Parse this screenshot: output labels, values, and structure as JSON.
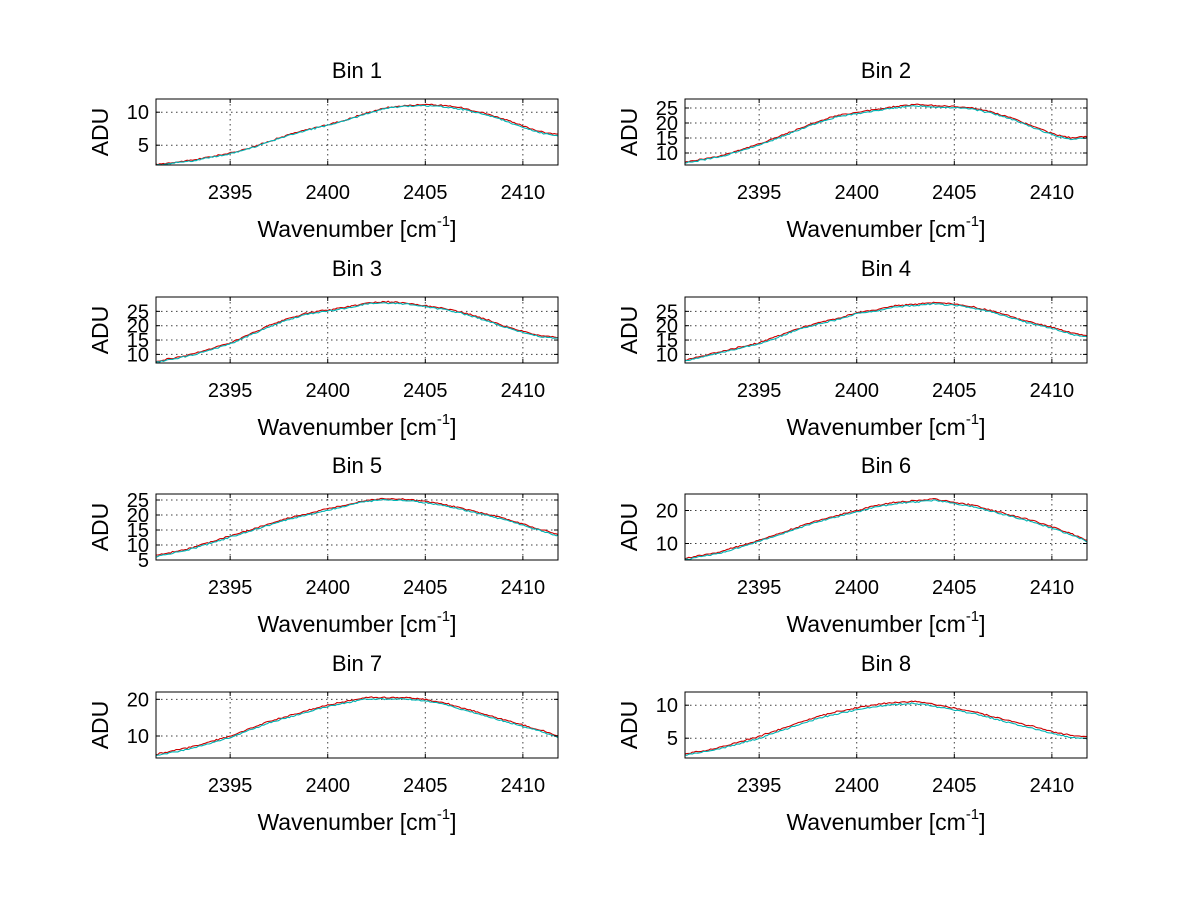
{
  "figure": {
    "panel_titles": [
      "Bin 1",
      "Bin 2",
      "Bin 3",
      "Bin 4",
      "Bin 5",
      "Bin 6",
      "Bin 7",
      "Bin 8"
    ],
    "xlabel_main": "Wavenumber [cm",
    "xlabel_sup": "-1",
    "xlabel_close": "]",
    "ylabel": "ADU"
  },
  "chart_data": [
    {
      "type": "line",
      "title": "Bin 1",
      "xlabel": "Wavenumber [cm-1]",
      "ylabel": "ADU",
      "xlim": [
        2391.2,
        2411.8
      ],
      "ylim": [
        2,
        12
      ],
      "xticks": [
        2395,
        2400,
        2405,
        2410
      ],
      "yticks": [
        5,
        10
      ],
      "grid": true,
      "x": [
        2391.2,
        2393,
        2395,
        2396,
        2397,
        2398,
        2399,
        2400,
        2401,
        2402,
        2403,
        2404,
        2405,
        2406,
        2407,
        2408,
        2409,
        2410,
        2411,
        2411.8
      ],
      "series": [
        {
          "color": "#cc0000",
          "values": [
            2.1,
            2.7,
            3.8,
            4.6,
            5.6,
            6.6,
            7.4,
            8.1,
            8.9,
            9.9,
            10.7,
            11.0,
            11.2,
            11.0,
            10.6,
            9.9,
            9.0,
            7.9,
            7.0,
            6.6
          ]
        },
        {
          "color": "#00b4b4",
          "values": [
            2.0,
            2.6,
            3.7,
            4.5,
            5.5,
            6.5,
            7.3,
            8.0,
            8.8,
            9.8,
            10.6,
            10.9,
            11.0,
            10.8,
            10.4,
            9.7,
            8.8,
            7.7,
            6.8,
            6.4
          ]
        }
      ]
    },
    {
      "type": "line",
      "title": "Bin 2",
      "xlabel": "Wavenumber [cm-1]",
      "ylabel": "ADU",
      "xlim": [
        2391.2,
        2411.8
      ],
      "ylim": [
        6,
        28
      ],
      "xticks": [
        2395,
        2400,
        2405,
        2410
      ],
      "yticks": [
        10,
        15,
        20,
        25
      ],
      "grid": true,
      "x": [
        2391.2,
        2393,
        2395,
        2396,
        2397,
        2398,
        2399,
        2400,
        2401,
        2402,
        2403,
        2404,
        2405,
        2406,
        2407,
        2408,
        2409,
        2410,
        2411,
        2411.8
      ],
      "series": [
        {
          "color": "#cc0000",
          "values": [
            7,
            9,
            13,
            15.5,
            18,
            20.5,
            22.5,
            23.5,
            24.5,
            25.5,
            26.2,
            25.8,
            25.5,
            25,
            23.5,
            21.5,
            19,
            16.5,
            15,
            15.5
          ]
        },
        {
          "color": "#00b4b4",
          "values": [
            6.7,
            8.7,
            12.6,
            15.1,
            17.6,
            20.1,
            22.1,
            23.1,
            24.1,
            25.1,
            25.8,
            25.4,
            25.1,
            24.6,
            23.1,
            21.1,
            18.6,
            16.1,
            14.6,
            15.1
          ]
        }
      ]
    },
    {
      "type": "line",
      "title": "Bin 3",
      "xlabel": "Wavenumber [cm-1]",
      "ylabel": "ADU",
      "xlim": [
        2391.2,
        2411.8
      ],
      "ylim": [
        7,
        30
      ],
      "xticks": [
        2395,
        2400,
        2405,
        2410
      ],
      "yticks": [
        10,
        15,
        20,
        25
      ],
      "grid": true,
      "x": [
        2391.2,
        2393,
        2395,
        2396,
        2397,
        2398,
        2399,
        2400,
        2401,
        2402,
        2403,
        2404,
        2405,
        2406,
        2407,
        2408,
        2409,
        2410,
        2411,
        2411.8
      ],
      "series": [
        {
          "color": "#cc0000",
          "values": [
            7.5,
            10,
            14,
            17,
            20,
            22.5,
            24.5,
            25.5,
            26.5,
            28,
            28.3,
            28,
            27,
            26,
            24.5,
            22.5,
            20,
            18,
            16.5,
            16
          ]
        },
        {
          "color": "#00b4b4",
          "values": [
            7.2,
            9.6,
            13.6,
            16.6,
            19.6,
            22.1,
            24.1,
            25.1,
            26.1,
            27.6,
            27.9,
            27.6,
            26.6,
            25.6,
            24.1,
            22.1,
            19.6,
            17.6,
            16.1,
            15.6
          ]
        }
      ]
    },
    {
      "type": "line",
      "title": "Bin 4",
      "xlabel": "Wavenumber [cm-1]",
      "ylabel": "ADU",
      "xlim": [
        2391.2,
        2411.8
      ],
      "ylim": [
        7,
        30
      ],
      "xticks": [
        2395,
        2400,
        2405,
        2410
      ],
      "yticks": [
        10,
        15,
        20,
        25
      ],
      "grid": true,
      "x": [
        2391.2,
        2393,
        2395,
        2396,
        2397,
        2398,
        2399,
        2400,
        2401,
        2402,
        2403,
        2404,
        2405,
        2406,
        2407,
        2408,
        2409,
        2410,
        2411,
        2411.8
      ],
      "series": [
        {
          "color": "#cc0000",
          "values": [
            8,
            11,
            14,
            16.5,
            19,
            21,
            22.5,
            24.5,
            25.5,
            27,
            27.5,
            28,
            27.5,
            26.5,
            25,
            23,
            21,
            19.5,
            17.5,
            16.5
          ]
        },
        {
          "color": "#00b4b4",
          "values": [
            7.6,
            10.6,
            13.6,
            16.1,
            18.6,
            20.6,
            22.1,
            24.1,
            25.1,
            26.6,
            27.1,
            27.6,
            27.1,
            26.1,
            24.6,
            22.6,
            20.6,
            19.1,
            17.1,
            16.1
          ]
        }
      ]
    },
    {
      "type": "line",
      "title": "Bin 5",
      "xlabel": "Wavenumber [cm-1]",
      "ylabel": "ADU",
      "xlim": [
        2391.2,
        2411.8
      ],
      "ylim": [
        5,
        27
      ],
      "xticks": [
        2395,
        2400,
        2405,
        2410
      ],
      "yticks": [
        5,
        10,
        15,
        20,
        25
      ],
      "grid": true,
      "x": [
        2391.2,
        2393,
        2395,
        2396,
        2397,
        2398,
        2399,
        2400,
        2401,
        2402,
        2403,
        2404,
        2405,
        2406,
        2407,
        2408,
        2409,
        2410,
        2411,
        2411.8
      ],
      "series": [
        {
          "color": "#cc0000",
          "values": [
            6.5,
            9,
            13,
            15,
            17,
            19,
            20.5,
            22,
            23.5,
            25,
            25.5,
            25.2,
            24.5,
            23.5,
            22,
            20.5,
            19,
            17,
            15,
            13.5
          ]
        },
        {
          "color": "#00b4b4",
          "values": [
            6.1,
            8.6,
            12.6,
            14.6,
            16.6,
            18.6,
            20.1,
            21.6,
            23.1,
            24.6,
            25.1,
            24.8,
            24.1,
            23.1,
            21.6,
            20.1,
            18.6,
            16.6,
            14.6,
            13.1
          ]
        }
      ]
    },
    {
      "type": "line",
      "title": "Bin 6",
      "xlabel": "Wavenumber [cm-1]",
      "ylabel": "ADU",
      "xlim": [
        2391.2,
        2411.8
      ],
      "ylim": [
        5,
        25
      ],
      "xticks": [
        2395,
        2400,
        2405,
        2410
      ],
      "yticks": [
        10,
        20
      ],
      "grid": true,
      "x": [
        2391.2,
        2393,
        2395,
        2396,
        2397,
        2398,
        2399,
        2400,
        2401,
        2402,
        2403,
        2404,
        2405,
        2406,
        2407,
        2408,
        2409,
        2410,
        2411,
        2411.8
      ],
      "series": [
        {
          "color": "#cc0000",
          "values": [
            5.5,
            7.5,
            11,
            13,
            15,
            17,
            18.5,
            20,
            21.5,
            22.5,
            23,
            23.5,
            22.5,
            21.5,
            20,
            18.5,
            17,
            15,
            13,
            11
          ]
        },
        {
          "color": "#00b4b4",
          "values": [
            5.1,
            7.1,
            10.6,
            12.6,
            14.6,
            16.6,
            18.1,
            19.6,
            21.1,
            22.1,
            22.6,
            23.1,
            22.1,
            21.1,
            19.6,
            18.1,
            16.6,
            14.6,
            12.6,
            10.6
          ]
        }
      ]
    },
    {
      "type": "line",
      "title": "Bin 7",
      "xlabel": "Wavenumber [cm-1]",
      "ylabel": "ADU",
      "xlim": [
        2391.2,
        2411.8
      ],
      "ylim": [
        4,
        22
      ],
      "xticks": [
        2395,
        2400,
        2405,
        2410
      ],
      "yticks": [
        10,
        20
      ],
      "grid": true,
      "x": [
        2391.2,
        2393,
        2395,
        2396,
        2397,
        2398,
        2399,
        2400,
        2401,
        2402,
        2403,
        2404,
        2405,
        2406,
        2407,
        2408,
        2409,
        2410,
        2411,
        2411.8
      ],
      "series": [
        {
          "color": "#cc0000",
          "values": [
            5,
            7,
            10,
            12,
            14,
            15.5,
            17,
            18.5,
            19.5,
            20.5,
            20.5,
            20.5,
            20,
            19,
            17.5,
            16,
            14.5,
            13,
            11.5,
            10
          ]
        },
        {
          "color": "#00b4b4",
          "values": [
            4.6,
            6.6,
            9.6,
            11.6,
            13.6,
            15.1,
            16.6,
            18.1,
            19.1,
            20.1,
            20.1,
            20.1,
            19.6,
            18.6,
            17.1,
            15.6,
            14.1,
            12.6,
            11.1,
            9.6
          ]
        }
      ]
    },
    {
      "type": "line",
      "title": "Bin 8",
      "xlabel": "Wavenumber [cm-1]",
      "ylabel": "ADU",
      "xlim": [
        2391.2,
        2411.8
      ],
      "ylim": [
        2,
        12
      ],
      "xticks": [
        2395,
        2400,
        2405,
        2410
      ],
      "yticks": [
        5,
        10
      ],
      "grid": true,
      "x": [
        2391.2,
        2393,
        2395,
        2396,
        2397,
        2398,
        2399,
        2400,
        2401,
        2402,
        2403,
        2404,
        2405,
        2406,
        2407,
        2408,
        2409,
        2410,
        2411,
        2411.8
      ],
      "series": [
        {
          "color": "#cc0000",
          "values": [
            2.6,
            3.6,
            5.3,
            6.3,
            7.3,
            8.3,
            9.0,
            9.6,
            10.1,
            10.4,
            10.6,
            10.1,
            9.6,
            9.0,
            8.3,
            7.5,
            6.8,
            6.0,
            5.4,
            5.2
          ]
        },
        {
          "color": "#00b4b4",
          "values": [
            2.4,
            3.4,
            5.0,
            6.0,
            7.0,
            8.0,
            8.7,
            9.3,
            9.8,
            10.1,
            10.3,
            9.8,
            9.3,
            8.7,
            8.0,
            7.2,
            6.5,
            5.7,
            5.1,
            4.9
          ]
        }
      ]
    }
  ]
}
